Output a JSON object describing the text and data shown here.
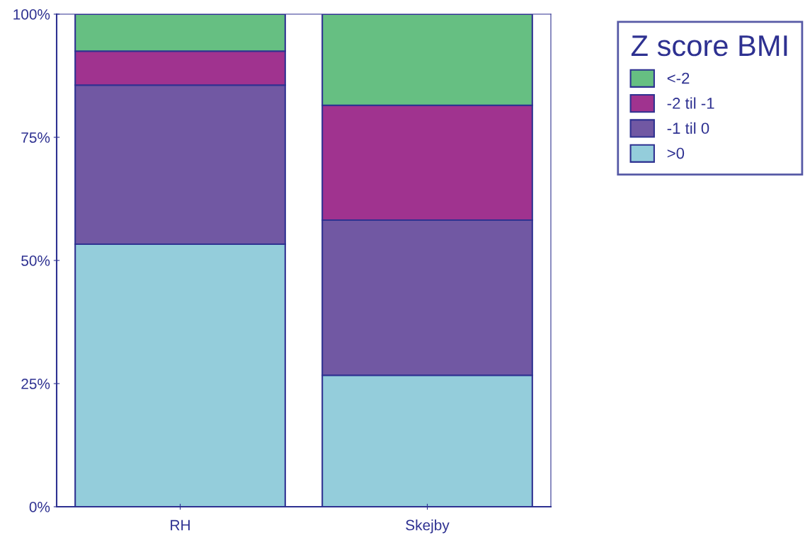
{
  "chart_data": {
    "type": "bar",
    "stacked": true,
    "categories": [
      "RH",
      "Skejby"
    ],
    "series": [
      {
        "name": ">0",
        "color": "#94cddb",
        "values": [
          53.3,
          26.7
        ]
      },
      {
        "name": "-1 til 0",
        "color": "#7158a3",
        "values": [
          32.3,
          31.5
        ]
      },
      {
        "name": "-2 til -1",
        "color": "#a0338f",
        "values": [
          6.9,
          23.3
        ]
      },
      {
        "name": "<-2",
        "color": "#66bf82",
        "values": [
          7.5,
          18.5
        ]
      }
    ],
    "ylim": [
      0,
      100
    ],
    "yticks": [
      {
        "value": 0,
        "label": "0%"
      },
      {
        "value": 25,
        "label": "25%"
      },
      {
        "value": 50,
        "label": "50%"
      },
      {
        "value": 75,
        "label": "75%"
      },
      {
        "value": 100,
        "label": "100%"
      }
    ],
    "legend_title": "Z score BMI",
    "legend": "top right",
    "grid": false
  }
}
